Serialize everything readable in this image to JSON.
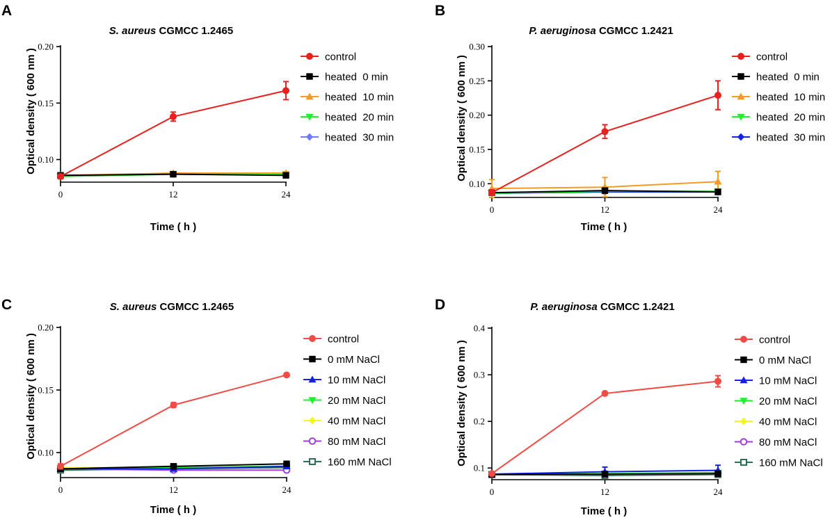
{
  "colors": {
    "red": "#e8211f",
    "salmon": "#f04b45",
    "black": "#000000",
    "orange": "#f59a23",
    "green": "#1ff02a",
    "lavender": "#6f78ff",
    "blue": "#1320e8",
    "yellow": "#f5f51b",
    "purple": "#a23ce0",
    "teal": "#2e6e52"
  },
  "chart_data": [
    {
      "panel": "A",
      "type": "line",
      "title_italic": "S. aureus",
      "title_rest": " CGMCC 1.2465",
      "xlabel": "Time ( h )",
      "ylabel": "Optical density ( 600 nm )",
      "x": [
        0,
        12,
        24
      ],
      "xticks": [
        "0",
        "12",
        "24"
      ],
      "ylim": [
        0.08,
        0.2
      ],
      "yticks": [
        0.1,
        0.15,
        0.2
      ],
      "ytick_labels": [
        "0.10",
        "0.15",
        "0.20"
      ],
      "legend_position": "right",
      "series": [
        {
          "name": "control",
          "color_key": "red",
          "marker": "circle",
          "values": [
            0.085,
            0.138,
            0.161
          ],
          "errors": [
            0.002,
            0.004,
            0.008
          ]
        },
        {
          "name": "heated  0 min",
          "color_key": "black",
          "marker": "square",
          "values": [
            0.086,
            0.087,
            0.086
          ],
          "errors": [
            0.001,
            0.001,
            0.001
          ]
        },
        {
          "name": "heated  10 min",
          "color_key": "orange",
          "marker": "triangle-up",
          "values": [
            0.086,
            0.088,
            0.088
          ],
          "errors": [
            0.001,
            0.001,
            0.001
          ]
        },
        {
          "name": "heated  20 min",
          "color_key": "green",
          "marker": "triangle-down",
          "values": [
            0.085,
            0.087,
            0.087
          ],
          "errors": [
            0.001,
            0.001,
            0.001
          ]
        },
        {
          "name": "heated  30 min",
          "color_key": "lavender",
          "marker": "diamond",
          "values": [
            0.086,
            0.087,
            0.087
          ],
          "errors": [
            0.001,
            0.001,
            0.001
          ]
        }
      ]
    },
    {
      "panel": "B",
      "type": "line",
      "title_italic": "P. aeruginosa",
      "title_rest": " CGMCC 1.2421",
      "xlabel": "Time ( h )",
      "ylabel": "Optical density ( 600 nm )",
      "x": [
        0,
        12,
        24
      ],
      "xticks": [
        "0",
        "12",
        "24"
      ],
      "ylim": [
        0.08,
        0.3
      ],
      "yticks": [
        0.1,
        0.15,
        0.2,
        0.25,
        0.3
      ],
      "ytick_labels": [
        "0.10",
        "0.15",
        "0.20",
        "0.25",
        "0.30"
      ],
      "legend_position": "right",
      "series": [
        {
          "name": "control",
          "color_key": "red",
          "marker": "circle",
          "values": [
            0.087,
            0.176,
            0.229
          ],
          "errors": [
            0.004,
            0.01,
            0.021
          ]
        },
        {
          "name": "heated  0 min",
          "color_key": "black",
          "marker": "square",
          "values": [
            0.087,
            0.09,
            0.088
          ],
          "errors": [
            0.002,
            0.002,
            0.002
          ]
        },
        {
          "name": "heated  10 min",
          "color_key": "orange",
          "marker": "triangle-up",
          "values": [
            0.093,
            0.095,
            0.103
          ],
          "errors": [
            0.013,
            0.014,
            0.015
          ]
        },
        {
          "name": "heated  20 min",
          "color_key": "green",
          "marker": "triangle-down",
          "values": [
            0.086,
            0.089,
            0.089
          ],
          "errors": [
            0.002,
            0.002,
            0.002
          ]
        },
        {
          "name": "heated  30 min",
          "color_key": "blue",
          "marker": "diamond",
          "values": [
            0.086,
            0.088,
            0.088
          ],
          "errors": [
            0.001,
            0.002,
            0.002
          ]
        }
      ]
    },
    {
      "panel": "C",
      "type": "line",
      "title_italic": "S. aureus",
      "title_rest": " CGMCC 1.2465",
      "xlabel": "Time ( h )",
      "ylabel": "Optical density ( 600 nm )",
      "x": [
        0,
        12,
        24
      ],
      "xticks": [
        "0",
        "12",
        "24"
      ],
      "ylim": [
        0.08,
        0.2
      ],
      "yticks": [
        0.1,
        0.15,
        0.2
      ],
      "ytick_labels": [
        "0.10",
        "0.15",
        "0.20"
      ],
      "legend_position": "right",
      "series": [
        {
          "name": "control",
          "color_key": "salmon",
          "marker": "circle",
          "values": [
            0.089,
            0.138,
            0.162
          ],
          "errors": [
            0.002,
            0.002,
            0.001
          ]
        },
        {
          "name": "0 mM NaCl",
          "color_key": "black",
          "marker": "square",
          "values": [
            0.087,
            0.089,
            0.091
          ],
          "errors": [
            0.001,
            0.001,
            0.001
          ]
        },
        {
          "name": "10 mM NaCl",
          "color_key": "blue",
          "marker": "triangle-up",
          "values": [
            0.087,
            0.087,
            0.089
          ],
          "errors": [
            0.001,
            0.001,
            0.001
          ]
        },
        {
          "name": "20 mM NaCl",
          "color_key": "green",
          "marker": "triangle-down",
          "values": [
            0.087,
            0.088,
            0.089
          ],
          "errors": [
            0.001,
            0.001,
            0.001
          ]
        },
        {
          "name": "40 mM NaCl",
          "color_key": "yellow",
          "marker": "diamond",
          "values": [
            0.088,
            0.088,
            0.089
          ],
          "errors": [
            0.001,
            0.001,
            0.001
          ]
        },
        {
          "name": "80 mM NaCl",
          "color_key": "purple",
          "marker": "circle-open",
          "values": [
            0.087,
            0.086,
            0.086
          ],
          "errors": [
            0.001,
            0.001,
            0.001
          ]
        },
        {
          "name": "160 mM NaCl",
          "color_key": "teal",
          "marker": "square-open",
          "values": [
            0.086,
            0.087,
            0.088
          ],
          "errors": [
            0.001,
            0.001,
            0.001
          ]
        }
      ]
    },
    {
      "panel": "D",
      "type": "line",
      "title_italic": "P. aeruginosa",
      "title_rest": " CGMCC 1.2421",
      "xlabel": "Time ( h )",
      "ylabel": "Optical density ( 600 nm )",
      "x": [
        0,
        12,
        24
      ],
      "xticks": [
        "0",
        "12",
        "24"
      ],
      "ylim": [
        0.075,
        0.4
      ],
      "yticks": [
        0.1,
        0.2,
        0.3,
        0.4
      ],
      "ytick_labels": [
        "0.1",
        "0.2",
        "0.3",
        "0.4"
      ],
      "legend_position": "right",
      "series": [
        {
          "name": "control",
          "color_key": "salmon",
          "marker": "circle",
          "values": [
            0.088,
            0.26,
            0.286
          ],
          "errors": [
            0.002,
            0.002,
            0.012
          ]
        },
        {
          "name": "0 mM NaCl",
          "color_key": "black",
          "marker": "square",
          "values": [
            0.086,
            0.087,
            0.088
          ],
          "errors": [
            0.002,
            0.003,
            0.003
          ]
        },
        {
          "name": "10 mM NaCl",
          "color_key": "blue",
          "marker": "triangle-up",
          "values": [
            0.087,
            0.092,
            0.095
          ],
          "errors": [
            0.002,
            0.01,
            0.011
          ]
        },
        {
          "name": "20 mM NaCl",
          "color_key": "green",
          "marker": "triangle-down",
          "values": [
            0.086,
            0.088,
            0.09
          ],
          "errors": [
            0.002,
            0.003,
            0.003
          ]
        },
        {
          "name": "40 mM NaCl",
          "color_key": "yellow",
          "marker": "diamond",
          "values": [
            0.086,
            0.087,
            0.089
          ],
          "errors": [
            0.002,
            0.003,
            0.003
          ]
        },
        {
          "name": "80 mM NaCl",
          "color_key": "purple",
          "marker": "circle-open",
          "values": [
            0.086,
            0.086,
            0.088
          ],
          "errors": [
            0.002,
            0.002,
            0.002
          ]
        },
        {
          "name": "160 mM NaCl",
          "color_key": "teal",
          "marker": "square-open",
          "values": [
            0.086,
            0.084,
            0.086
          ],
          "errors": [
            0.002,
            0.004,
            0.003
          ]
        }
      ]
    }
  ]
}
